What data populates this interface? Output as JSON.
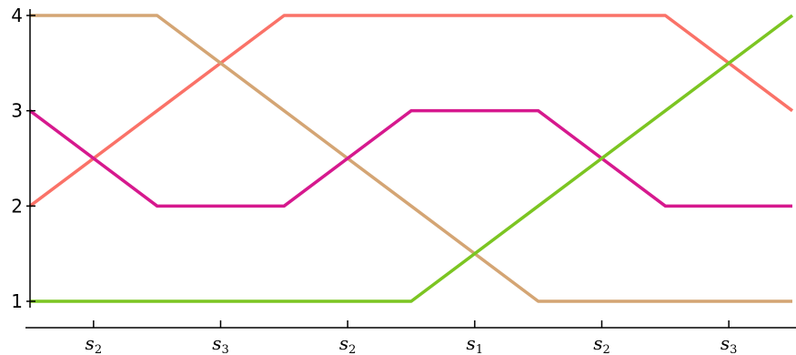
{
  "chart_data": {
    "type": "line",
    "title": "",
    "xlabel": "",
    "ylabel": "",
    "x": [
      0,
      1,
      2,
      3,
      4,
      5,
      6
    ],
    "xlim": [
      0,
      6
    ],
    "ylim": [
      1,
      4
    ],
    "yticks": [
      1,
      2,
      3,
      4
    ],
    "grid": false,
    "legend": "none",
    "xtick_labels": [
      {
        "base": "s",
        "sub": "2"
      },
      {
        "base": "s",
        "sub": "3"
      },
      {
        "base": "s",
        "sub": "2"
      },
      {
        "base": "s",
        "sub": "1"
      },
      {
        "base": "s",
        "sub": "2"
      },
      {
        "base": "s",
        "sub": "3"
      }
    ],
    "series": [
      {
        "color": "#fa7268",
        "values": [
          2,
          3,
          4,
          4,
          4,
          4,
          3
        ]
      },
      {
        "color": "#d4a574",
        "values": [
          4,
          4,
          3,
          2,
          1,
          1,
          1
        ]
      },
      {
        "color": "#d6198e",
        "values": [
          3,
          2,
          2,
          3,
          3,
          2,
          2
        ]
      },
      {
        "color": "#7cc522",
        "values": [
          1,
          1,
          1,
          1,
          2,
          3,
          4
        ]
      }
    ]
  }
}
